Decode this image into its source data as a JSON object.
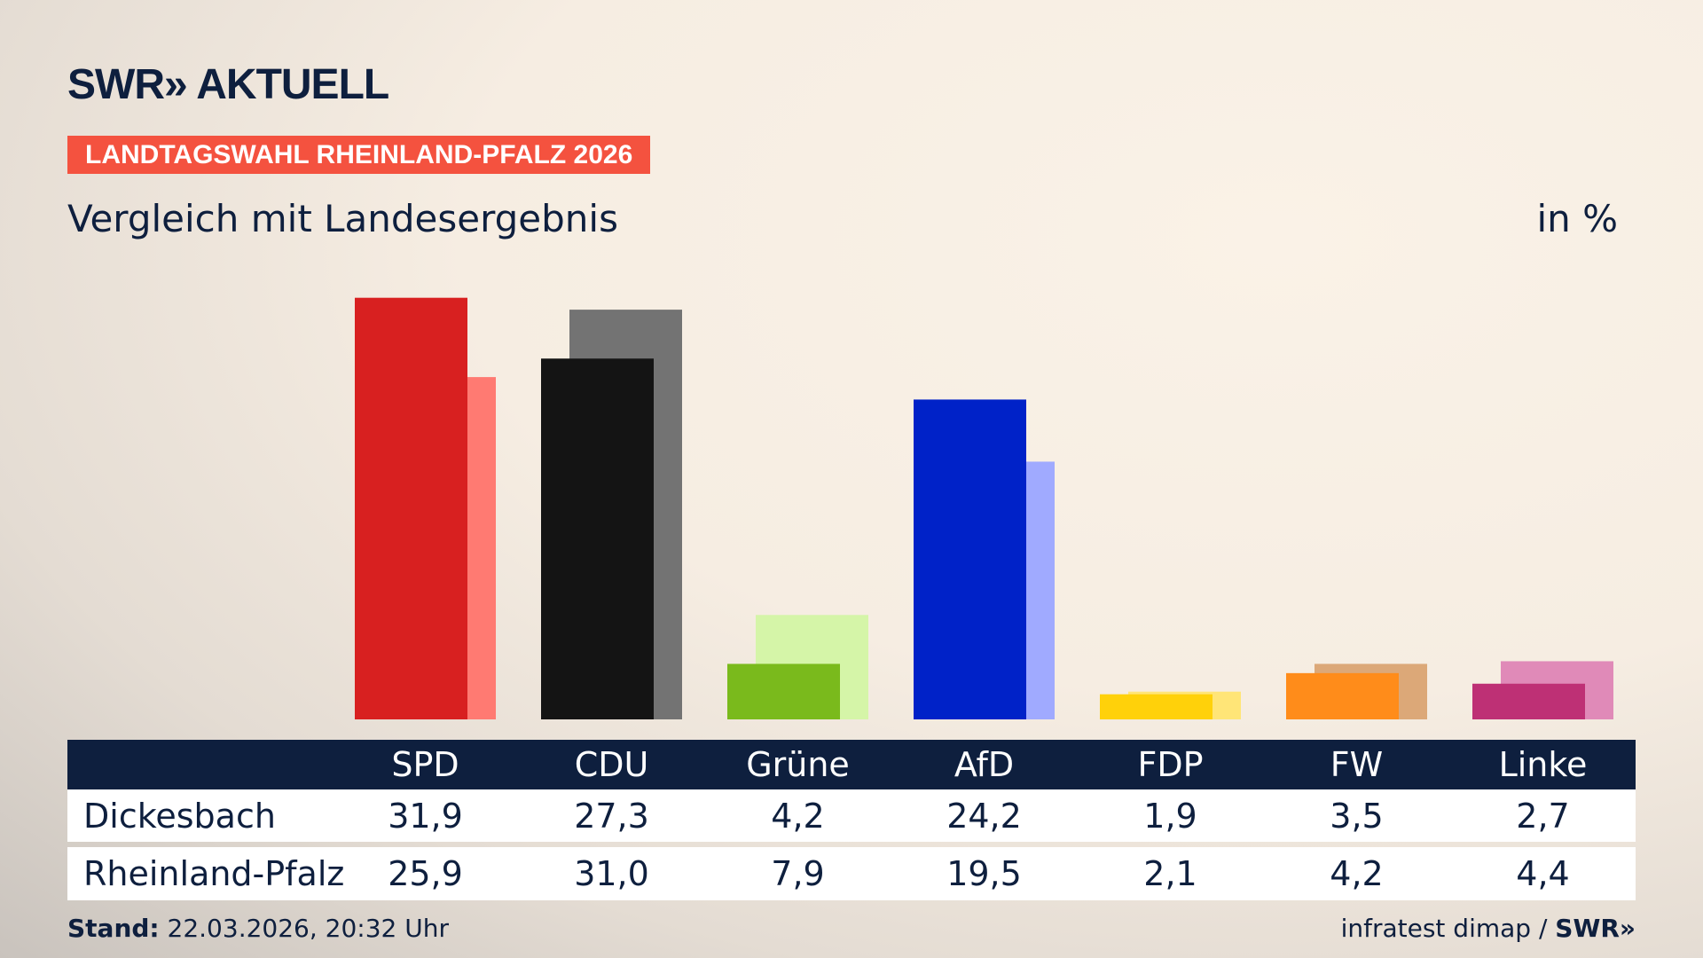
{
  "header": {
    "logo": "SWR» AKTUELL",
    "banner": "LANDTAGSWAHL RHEINLAND-PFALZ 2026",
    "subtitle": "Vergleich mit Landesergebnis",
    "unit": "in %"
  },
  "chart_data": {
    "type": "bar",
    "categories": [
      "SPD",
      "CDU",
      "Grüne",
      "AfD",
      "FDP",
      "FW",
      "Linke"
    ],
    "series": [
      {
        "name": "Dickesbach",
        "values": [
          31.9,
          27.3,
          4.2,
          24.2,
          1.9,
          3.5,
          2.7
        ],
        "colors": [
          "#d82020",
          "#141414",
          "#7aba1c",
          "#0022c8",
          "#ffd10a",
          "#ff8c1a",
          "#be3075"
        ]
      },
      {
        "name": "Rheinland-Pfalz",
        "values": [
          25.9,
          31.0,
          7.9,
          19.5,
          2.1,
          4.2,
          4.4
        ],
        "colors": [
          "#ff7a72",
          "#737373",
          "#d5f5a8",
          "#a0aaff",
          "#ffe577",
          "#dca878",
          "#e08ab8"
        ]
      }
    ],
    "display_values": {
      "Dickesbach": [
        "31,9",
        "27,3",
        "4,2",
        "24,2",
        "1,9",
        "3,5",
        "2,7"
      ],
      "Rheinland-Pfalz": [
        "25,9",
        "31,0",
        "7,9",
        "19,5",
        "2,1",
        "4,2",
        "4,4"
      ]
    }
  },
  "footer": {
    "stand_label": "Stand:",
    "stand_value": "22.03.2026, 20:32 Uhr",
    "source": "infratest dimap / ",
    "source_logo": "SWR»"
  }
}
